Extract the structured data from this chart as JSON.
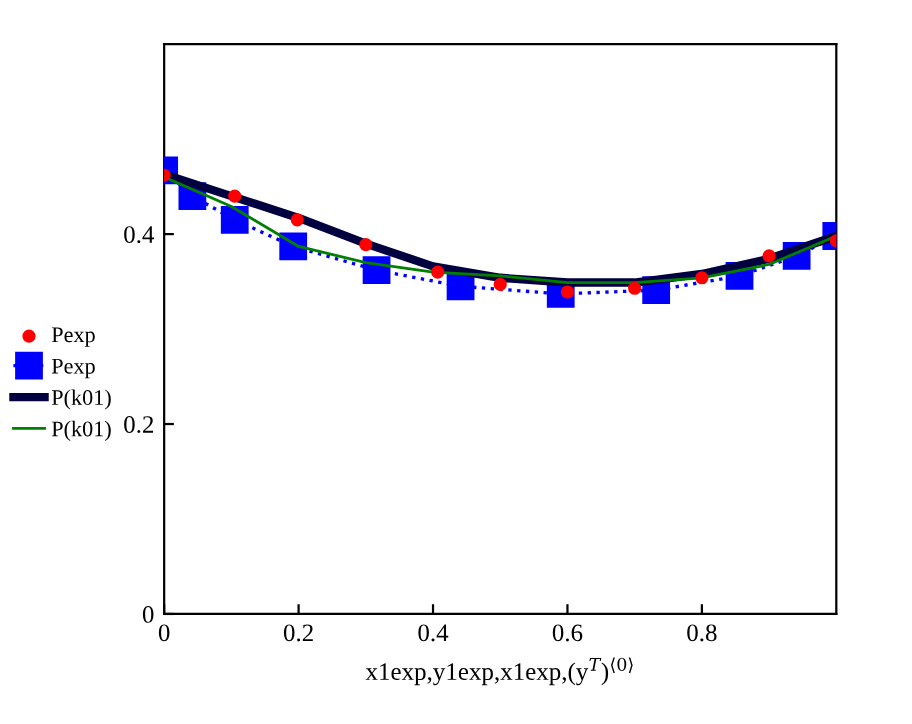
{
  "chart_data": {
    "type": "line",
    "xlabel": "x1exp,y1exp,x1exp,(y$^{T}$)$^{⟨0⟩}$",
    "xlim": [
      0,
      1
    ],
    "ylim": [
      0,
      0.6
    ],
    "xticks": [
      0,
      0.2,
      0.4,
      0.6,
      0.8
    ],
    "yticks": [
      0,
      0.2,
      0.4
    ],
    "grid": false,
    "legend": "left",
    "series": [
      {
        "name": "Pexp",
        "type": "scatter",
        "marker": "circle",
        "color": "#ff0000",
        "x": [
          0,
          0.105,
          0.198,
          0.3,
          0.407,
          0.5,
          0.6,
          0.7,
          0.8,
          0.9,
          1.0
        ],
        "values": [
          0.462,
          0.44,
          0.415,
          0.389,
          0.36,
          0.347,
          0.339,
          0.343,
          0.354,
          0.377,
          0.393
        ]
      },
      {
        "name": "Pexp",
        "marker": "square",
        "line_style": "dotted",
        "color": "#0000ff",
        "x": [
          0,
          0.042,
          0.105,
          0.192,
          0.316,
          0.441,
          0.59,
          0.732,
          0.856,
          0.941,
          1.0
        ],
        "values": [
          0.467,
          0.44,
          0.415,
          0.387,
          0.362,
          0.345,
          0.337,
          0.341,
          0.356,
          0.377,
          0.398
        ]
      },
      {
        "name": "P(k01)",
        "marker": "none",
        "line_style": "solid",
        "color": "#000040",
        "x": [
          0,
          0.1,
          0.2,
          0.3,
          0.4,
          0.5,
          0.6,
          0.7,
          0.8,
          0.9,
          1.0
        ],
        "values": [
          0.463,
          0.44,
          0.417,
          0.39,
          0.366,
          0.354,
          0.349,
          0.349,
          0.358,
          0.374,
          0.398
        ]
      },
      {
        "name": "P(k01)",
        "marker": "none",
        "line_style": "solid",
        "color": "#008000",
        "x": [
          0,
          0.1,
          0.2,
          0.3,
          0.4,
          0.5,
          0.6,
          0.7,
          0.8,
          0.9,
          1.0
        ],
        "values": [
          0.46,
          0.429,
          0.387,
          0.37,
          0.36,
          0.356,
          0.349,
          0.349,
          0.354,
          0.368,
          0.398
        ]
      }
    ]
  }
}
